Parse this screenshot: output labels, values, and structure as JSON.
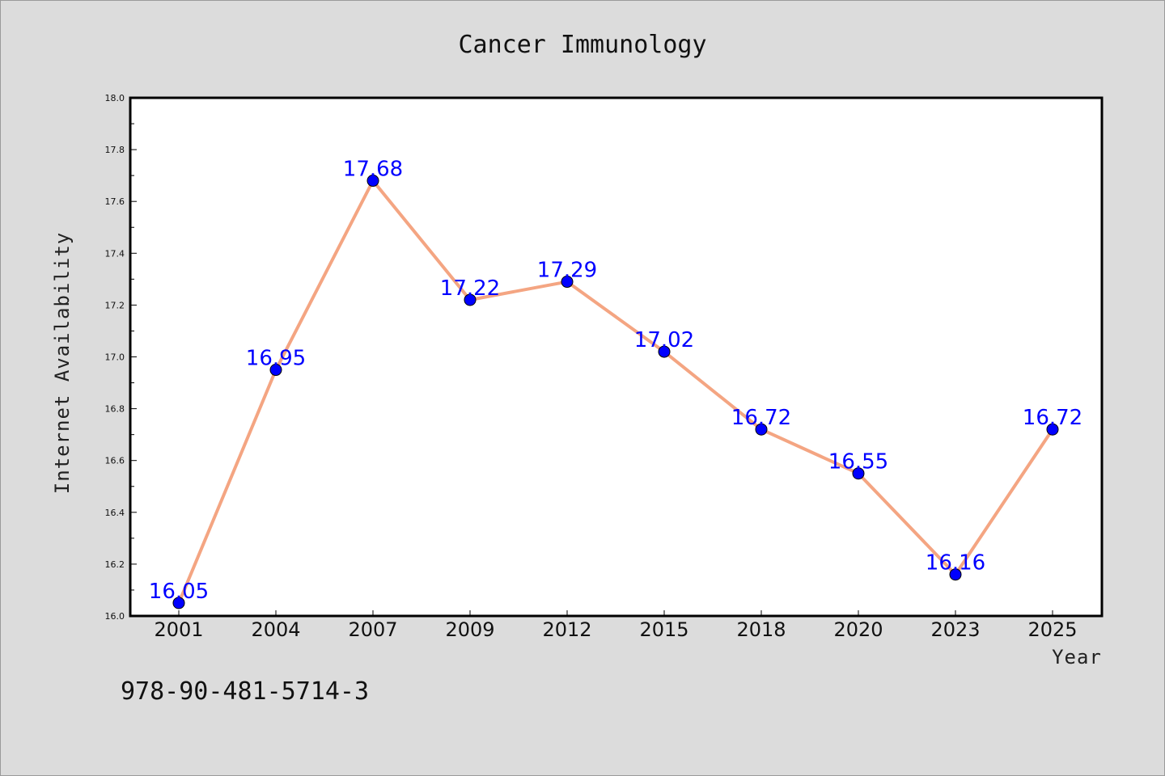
{
  "colors": {
    "background": "#dcdcdc",
    "plot_background": "#ffffff",
    "line": "#f4a582",
    "marker": "#0000ff",
    "data_label": "#0000ff"
  },
  "footer": {
    "text": "978-90-481-5714-3"
  },
  "chart_data": {
    "type": "line",
    "title": "Cancer Immunology",
    "xlabel": "Year",
    "ylabel": "Internet Availability",
    "categories": [
      "2001",
      "2004",
      "2007",
      "2009",
      "2012",
      "2015",
      "2018",
      "2020",
      "2023",
      "2025"
    ],
    "series": [
      {
        "values": [
          16.05,
          16.95,
          17.68,
          17.22,
          17.29,
          17.02,
          16.72,
          16.55,
          16.16,
          16.72
        ],
        "data_labels": [
          "16.05",
          "16.95",
          "17.68",
          "17.22",
          "17.29",
          "17.02",
          "16.72",
          "16.55",
          "16.16",
          "16.72"
        ],
        "marker": "circle"
      }
    ],
    "ylim": [
      16.0,
      18.0
    ],
    "yticks": [
      "16.0",
      "16.2",
      "16.4",
      "16.6",
      "16.8",
      "17.0",
      "17.2",
      "17.4",
      "17.6",
      "17.8",
      "18.0"
    ],
    "grid": false,
    "legend": "none"
  }
}
